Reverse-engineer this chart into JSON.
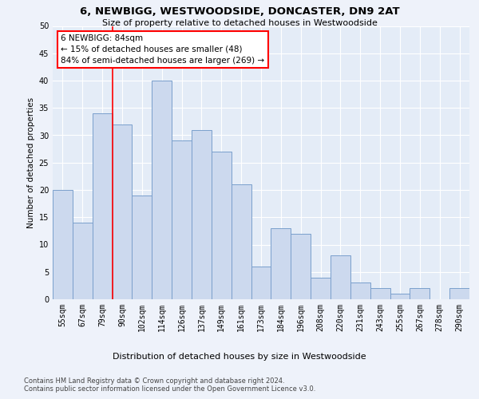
{
  "title1": "6, NEWBIGG, WESTWOODSIDE, DONCASTER, DN9 2AT",
  "title2": "Size of property relative to detached houses in Westwoodside",
  "xlabel": "Distribution of detached houses by size in Westwoodside",
  "ylabel": "Number of detached properties",
  "categories": [
    "55sqm",
    "67sqm",
    "79sqm",
    "90sqm",
    "102sqm",
    "114sqm",
    "126sqm",
    "137sqm",
    "149sqm",
    "161sqm",
    "173sqm",
    "184sqm",
    "196sqm",
    "208sqm",
    "220sqm",
    "231sqm",
    "243sqm",
    "255sqm",
    "267sqm",
    "278sqm",
    "290sqm"
  ],
  "values": [
    20,
    14,
    34,
    32,
    19,
    40,
    29,
    31,
    27,
    21,
    6,
    13,
    12,
    4,
    8,
    3,
    2,
    1,
    2,
    0,
    2
  ],
  "bar_color": "#ccd9ee",
  "bar_edge_color": "#7a9fcc",
  "vline_x": 2.5,
  "vline_color": "red",
  "annotation_text": "6 NEWBIGG: 84sqm\n← 15% of detached houses are smaller (48)\n84% of semi-detached houses are larger (269) →",
  "annotation_box_color": "white",
  "annotation_box_edge": "red",
  "ylim": [
    0,
    50
  ],
  "yticks": [
    0,
    5,
    10,
    15,
    20,
    25,
    30,
    35,
    40,
    45,
    50
  ],
  "footer1": "Contains HM Land Registry data © Crown copyright and database right 2024.",
  "footer2": "Contains public sector information licensed under the Open Government Licence v3.0.",
  "bg_color": "#eef2fa",
  "plot_bg_color": "#e4ecf7",
  "title1_fontsize": 9.5,
  "title2_fontsize": 8.0,
  "ylabel_fontsize": 7.5,
  "xlabel_fontsize": 8.0,
  "tick_fontsize": 7.0,
  "annot_fontsize": 7.5,
  "footer_fontsize": 6.0
}
